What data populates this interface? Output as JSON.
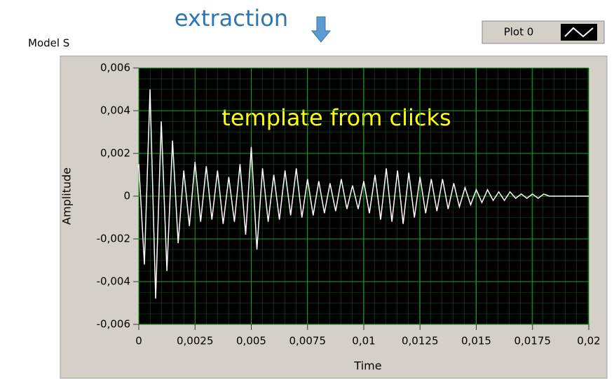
{
  "chart_data": {
    "type": "line",
    "header_annotation": "extraction",
    "panel_label": "Model S",
    "annotation": "template from clicks",
    "xlabel": "Time",
    "ylabel": "Amplitude",
    "xlim": [
      0,
      0.02
    ],
    "ylim": [
      -0.006,
      0.006
    ],
    "xticks": [
      0,
      {
        "value": 0.0025,
        "label": "0,0025"
      },
      {
        "value": 0.005,
        "label": "0,005"
      },
      {
        "value": 0.0075,
        "label": "0,0075"
      },
      {
        "value": 0.01,
        "label": "0,01"
      },
      {
        "value": 0.0125,
        "label": "0,0125"
      },
      {
        "value": 0.015,
        "label": "0,015"
      },
      {
        "value": 0.0175,
        "label": "0,0175"
      },
      {
        "value": 0.02,
        "label": "0,02"
      }
    ],
    "yticks": [
      {
        "value": -0.006,
        "label": "-0,006"
      },
      {
        "value": -0.004,
        "label": "-0,004"
      },
      {
        "value": -0.002,
        "label": "-0,002"
      },
      0,
      {
        "value": 0.002,
        "label": "0,002"
      },
      {
        "value": 0.004,
        "label": "0,004"
      },
      {
        "value": 0.006,
        "label": "0,006"
      }
    ],
    "grid": true,
    "legend": "top-right",
    "x": [
      0,
      0.00025,
      0.0005,
      0.00075,
      0.001,
      0.00125,
      0.0015,
      0.00175,
      0.002,
      0.00225,
      0.0025,
      0.00275,
      0.003,
      0.00325,
      0.0035,
      0.00375,
      0.004,
      0.00425,
      0.0045,
      0.00475,
      0.005,
      0.00525,
      0.0055,
      0.00575,
      0.006,
      0.00625,
      0.0065,
      0.00675,
      0.007,
      0.00725,
      0.0075,
      0.00775,
      0.008,
      0.00825,
      0.0085,
      0.00875,
      0.009,
      0.00925,
      0.0095,
      0.00975,
      0.01,
      0.01025,
      0.0105,
      0.01075,
      0.011,
      0.01125,
      0.0115,
      0.01175,
      0.012,
      0.01225,
      0.0125,
      0.01275,
      0.013,
      0.01325,
      0.0135,
      0.01375,
      0.014,
      0.01425,
      0.0145,
      0.01475,
      0.015,
      0.01525,
      0.0155,
      0.01575,
      0.016,
      0.01625,
      0.0165,
      0.01675,
      0.017,
      0.01725,
      0.0175,
      0.01775,
      0.018,
      0.01825,
      0.0185,
      0.01875,
      0.019,
      0.01925,
      0.0195,
      0.01975,
      0.02
    ],
    "series": [
      {
        "name": "Plot 0",
        "color": "#ffffff",
        "values": [
          0.0015,
          -0.0032,
          0.005,
          -0.0048,
          0.0035,
          -0.0035,
          0.0026,
          -0.0022,
          0.0012,
          -0.0014,
          0.0016,
          -0.0012,
          0.0014,
          -0.0011,
          0.0012,
          -0.0013,
          0.0009,
          -0.0012,
          0.0015,
          -0.0018,
          0.0023,
          -0.0025,
          0.0013,
          -0.0012,
          0.001,
          -0.0011,
          0.0012,
          -0.0009,
          0.0013,
          -0.001,
          0.0008,
          -0.0009,
          0.0007,
          -0.0008,
          0.0006,
          -0.0007,
          0.0008,
          -0.0006,
          0.0005,
          -0.0006,
          0.0007,
          -0.0008,
          0.001,
          -0.0011,
          0.0013,
          -0.0012,
          0.0012,
          -0.0013,
          0.0011,
          -0.001,
          0.0009,
          -0.0008,
          0.0008,
          -0.0007,
          0.0008,
          -0.0006,
          0.0006,
          -0.0005,
          0.0004,
          -0.0004,
          0.0003,
          -0.0003,
          0.0003,
          -0.0002,
          0.0002,
          -0.0002,
          0.0002,
          -0.0001,
          0.0001,
          -0.0001,
          0.0001,
          -0.0001,
          0.0001,
          0,
          0,
          0,
          0,
          0,
          0,
          0,
          0
        ]
      }
    ]
  }
}
